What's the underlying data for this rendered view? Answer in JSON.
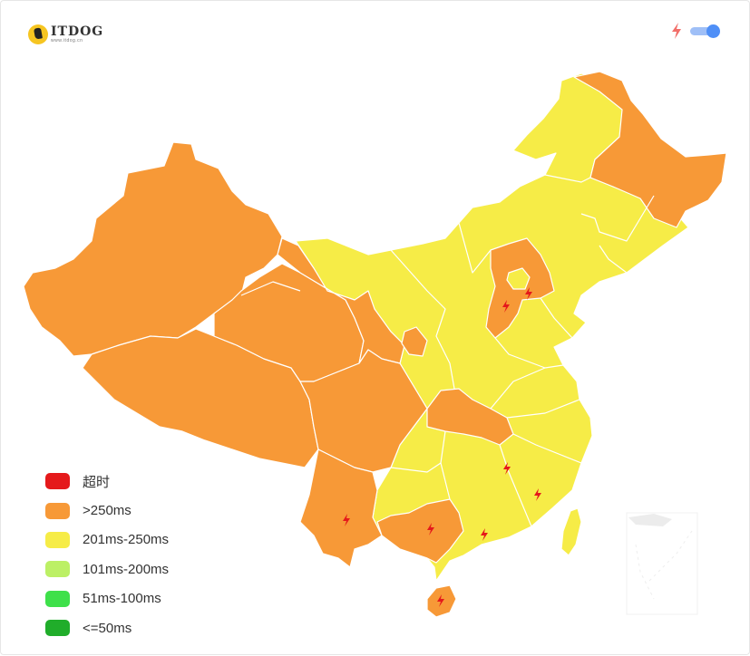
{
  "logo": {
    "text": "ITDOG",
    "sub": "www.itdog.cn"
  },
  "colors": {
    "timeout": "#e5191b",
    "over250": "#f79937",
    "r201_250": "#f6ec47",
    "r101_200": "#bcf065",
    "r51_100": "#3ee04a",
    "le50": "#20ad2a",
    "boundary": "#ffffff",
    "bolt": "#e5191b"
  },
  "toggle": {
    "icon": "lightning-icon",
    "state": "on"
  },
  "legend": [
    {
      "label": "超时",
      "color": "#e5191b"
    },
    {
      "label": ">250ms",
      "color": "#f79937"
    },
    {
      "label": "201ms-250ms",
      "color": "#f6ec47"
    },
    {
      "label": "101ms-200ms",
      "color": "#bcf065"
    },
    {
      "label": "51ms-100ms",
      "color": "#3ee04a"
    },
    {
      "label": "<=50ms",
      "color": "#20ad2a"
    }
  ]
}
